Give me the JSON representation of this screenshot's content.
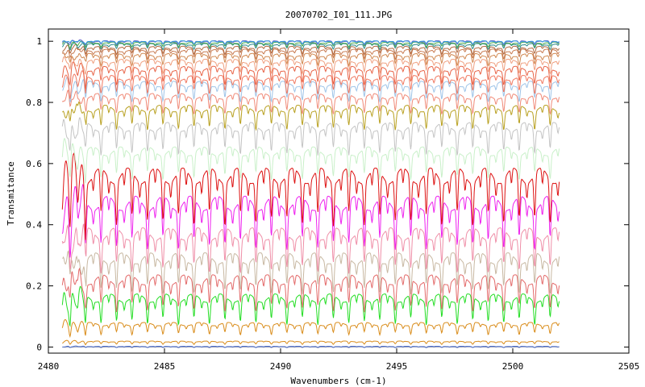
{
  "chart_data": {
    "type": "line",
    "title": "20070702_I01_111.JPG",
    "xlabel": "Wavenumbers (cm-1)",
    "ylabel": "Transmitance",
    "xlim": [
      2480,
      2505
    ],
    "ylim": [
      -0.02,
      1.04
    ],
    "x_ticks": [
      2480,
      2485,
      2490,
      2495,
      2500,
      2505
    ],
    "x_tick_labels": [
      "2480",
      "2485",
      "2490",
      "2495",
      "2500",
      "2505"
    ],
    "y_ticks": [
      0,
      0.2,
      0.4,
      0.6,
      0.8,
      1
    ],
    "y_tick_labels": [
      "0",
      "0.2",
      "0.4",
      "0.6",
      "0.8",
      "1"
    ],
    "grid": false,
    "legend": "none",
    "x_range_of_data": [
      2480.6,
      2502.0
    ],
    "absorption_line_spacing_cm1": 0.667,
    "series": [
      {
        "baseline": 0.0,
        "depth": 0.002,
        "color": "#9aa0b8"
      },
      {
        "baseline": 0.002,
        "depth": 0.003,
        "color": "#4a6cc9"
      },
      {
        "baseline": 0.018,
        "depth": 0.008,
        "color": "#d98c1a"
      },
      {
        "baseline": 0.075,
        "depth": 0.03,
        "color": "#d98c1a"
      },
      {
        "baseline": 0.16,
        "depth": 0.075,
        "color": "#22dd22"
      },
      {
        "baseline": 0.22,
        "depth": 0.09,
        "color": "#e36a6a"
      },
      {
        "baseline": 0.29,
        "depth": 0.1,
        "color": "#c8b8a2"
      },
      {
        "baseline": 0.37,
        "depth": 0.11,
        "color": "#ef8fa8"
      },
      {
        "baseline": 0.47,
        "depth": 0.13,
        "color": "#ee22ee"
      },
      {
        "baseline": 0.56,
        "depth": 0.14,
        "color": "#dd1111"
      },
      {
        "baseline": 0.64,
        "depth": 0.08,
        "color": "#c9f0c9"
      },
      {
        "baseline": 0.72,
        "depth": 0.08,
        "color": "#c4c4c4"
      },
      {
        "baseline": 0.78,
        "depth": 0.06,
        "color": "#b8a020"
      },
      {
        "baseline": 0.82,
        "depth": 0.05,
        "color": "#f08a78"
      },
      {
        "baseline": 0.86,
        "depth": 0.05,
        "color": "#9ec4e8"
      },
      {
        "baseline": 0.88,
        "depth": 0.045,
        "color": "#f07860"
      },
      {
        "baseline": 0.91,
        "depth": 0.045,
        "color": "#e86448"
      },
      {
        "baseline": 0.935,
        "depth": 0.035,
        "color": "#f0a080"
      },
      {
        "baseline": 0.955,
        "depth": 0.03,
        "color": "#d08850"
      },
      {
        "baseline": 0.97,
        "depth": 0.025,
        "color": "#c87a50"
      },
      {
        "baseline": 0.98,
        "depth": 0.02,
        "color": "#b06a40"
      },
      {
        "baseline": 0.99,
        "depth": 0.015,
        "color": "#2a8a8a"
      },
      {
        "baseline": 0.995,
        "depth": 0.012,
        "color": "#4aa84a"
      },
      {
        "baseline": 1.0,
        "depth": 0.01,
        "color": "#6a6acc"
      },
      {
        "baseline": 1.0,
        "depth": 0.008,
        "color": "#3399dd"
      }
    ]
  }
}
